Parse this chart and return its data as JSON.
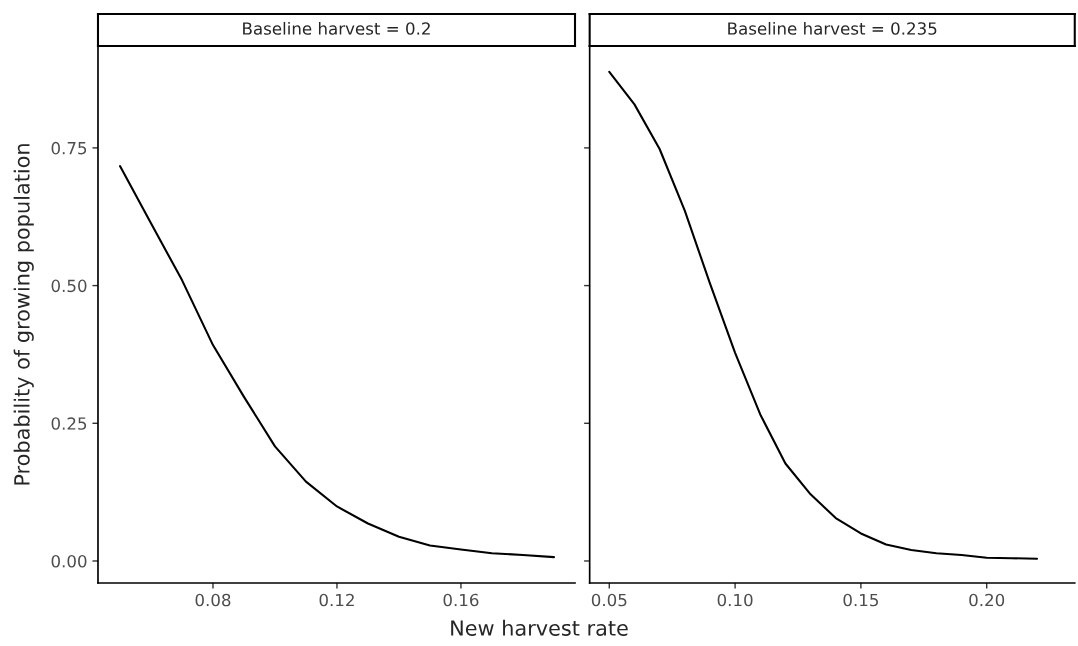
{
  "chart_data": [
    {
      "type": "line",
      "title": "Baseline harvest = 0.2",
      "ylabel": "Probability of growing population",
      "xlabel": "New harvest rate",
      "x": [
        0.05,
        0.06,
        0.07,
        0.08,
        0.09,
        0.1,
        0.11,
        0.12,
        0.13,
        0.14,
        0.15,
        0.16,
        0.17,
        0.18,
        0.19
      ],
      "series": [
        {
          "color": "#000000",
          "values": [
            0.717,
            0.613,
            0.51,
            0.392,
            0.298,
            0.208,
            0.144,
            0.099,
            0.068,
            0.044,
            0.028,
            0.021,
            0.014,
            0.011,
            0.007
          ]
        }
      ],
      "xlim": [
        0.0429,
        0.1968
      ],
      "ylim": [
        -0.04,
        0.935
      ],
      "xticks": [
        {
          "value": 0.08,
          "label": "0.08"
        },
        {
          "value": 0.12,
          "label": "0.12"
        },
        {
          "value": 0.16,
          "label": "0.16"
        }
      ],
      "yticks": [
        {
          "value": 0,
          "label": "0.00"
        },
        {
          "value": 0.25,
          "label": "0.25"
        },
        {
          "value": 0.5,
          "label": "0.50"
        },
        {
          "value": 0.75,
          "label": "0.75"
        }
      ],
      "grid": false,
      "legend": false
    },
    {
      "type": "line",
      "title": "Baseline harvest = 0.235",
      "x": [
        0.05,
        0.06,
        0.07,
        0.08,
        0.09,
        0.1,
        0.11,
        0.12,
        0.13,
        0.14,
        0.15,
        0.16,
        0.17,
        0.18,
        0.19,
        0.2,
        0.21,
        0.22
      ],
      "series": [
        {
          "color": "#000000",
          "values": [
            0.888,
            0.829,
            0.748,
            0.636,
            0.504,
            0.378,
            0.266,
            0.177,
            0.121,
            0.078,
            0.05,
            0.03,
            0.02,
            0.014,
            0.011,
            0.006,
            0.005,
            0.004
          ]
        }
      ],
      "xlim": [
        0.0422,
        0.235
      ],
      "ylim": [
        -0.04,
        0.935
      ],
      "xticks": [
        {
          "value": 0.05,
          "label": "0.05"
        },
        {
          "value": 0.1,
          "label": "0.10"
        },
        {
          "value": 0.15,
          "label": "0.15"
        },
        {
          "value": 0.2,
          "label": "0.20"
        }
      ],
      "tick_labels": "x",
      "grid": false,
      "legend": false
    }
  ]
}
